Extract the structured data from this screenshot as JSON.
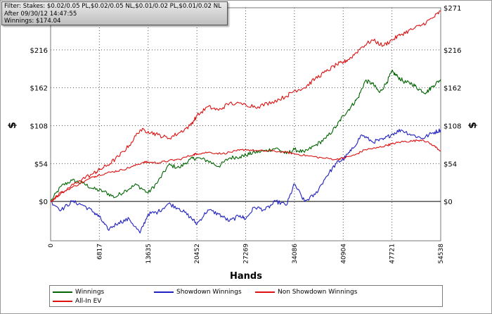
{
  "filter_panel": {
    "lines": [
      "Filter: Stakes: $0.02/0.05 PL,$0.02/0.05 NL,$0.01/0.02 PL,$0.01/0.02 NL",
      "After 09/30/12 14:47:55",
      "Winnings: $174.04"
    ]
  },
  "chart_data": {
    "type": "line",
    "xlabel": "Hands",
    "ylabel": "$",
    "xlim": [
      0,
      54538
    ],
    "ylim": [
      -56,
      276
    ],
    "x_ticks": [
      0,
      6817,
      13635,
      20452,
      27269,
      34086,
      40904,
      47721,
      54538
    ],
    "y_ticks": [
      0,
      54,
      108,
      162,
      216
    ],
    "y_tick_labels": [
      "$0",
      "$54",
      "$108",
      "$162",
      "$216"
    ],
    "y_top_label": "$271",
    "grid": true,
    "grid_style": "dotted",
    "legend_position": "bottom",
    "series": [
      {
        "name": "Winnings",
        "color": "#006400",
        "x": [
          0,
          1500,
          3000,
          4500,
          6000,
          7500,
          9000,
          10500,
          12000,
          13635,
          15000,
          16500,
          18000,
          19500,
          20452,
          22000,
          23500,
          25000,
          26500,
          27269,
          28500,
          30000,
          31500,
          33000,
          34086,
          35500,
          37000,
          38500,
          40000,
          40904,
          42000,
          43000,
          44000,
          45000,
          46000,
          47000,
          47721,
          48500,
          49500,
          50500,
          51500,
          52500,
          53500,
          54538
        ],
        "y": [
          0,
          22,
          30,
          26,
          18,
          14,
          6,
          16,
          24,
          12,
          28,
          52,
          48,
          60,
          62,
          58,
          50,
          62,
          64,
          66,
          70,
          72,
          76,
          68,
          74,
          70,
          80,
          90,
          108,
          122,
          135,
          148,
          172,
          168,
          155,
          170,
          185,
          178,
          170,
          168,
          160,
          155,
          165,
          174
        ]
      },
      {
        "name": "Showdown Winnings",
        "color": "#2020c0",
        "x": [
          0,
          1500,
          3000,
          4500,
          6000,
          6817,
          8000,
          9500,
          11000,
          12500,
          13635,
          15000,
          16500,
          18000,
          19500,
          20452,
          22000,
          23500,
          25000,
          26500,
          27269,
          28500,
          30000,
          31500,
          33000,
          34086,
          35500,
          37000,
          38500,
          40000,
          40904,
          42000,
          43500,
          45000,
          46500,
          47721,
          49000,
          50500,
          52000,
          53500,
          54538
        ],
        "y": [
          0,
          -12,
          0,
          -5,
          -15,
          -22,
          -40,
          -30,
          -25,
          -45,
          -18,
          -15,
          -3,
          -10,
          -22,
          -32,
          -12,
          -18,
          -28,
          -20,
          -25,
          -8,
          -12,
          0,
          -5,
          25,
          0,
          10,
          35,
          55,
          60,
          72,
          95,
          85,
          88,
          96,
          102,
          95,
          90,
          98,
          102
        ]
      },
      {
        "name": "Non Showdown Winnings",
        "color": "#dd1111",
        "x": [
          0,
          2000,
          4000,
          6000,
          6817,
          8500,
          10000,
          11500,
          13000,
          13635,
          15000,
          16500,
          18000,
          20000,
          20452,
          22000,
          24000,
          26000,
          27269,
          29000,
          31000,
          33000,
          34086,
          36000,
          38000,
          40000,
          40904,
          42500,
          44000,
          45500,
          47000,
          47721,
          49000,
          50500,
          52000,
          53500,
          54538
        ],
        "y": [
          0,
          15,
          25,
          35,
          38,
          42,
          45,
          50,
          56,
          56,
          55,
          58,
          60,
          67,
          68,
          70,
          68,
          72,
          74,
          72,
          72,
          70,
          68,
          65,
          62,
          60,
          62,
          66,
          74,
          76,
          80,
          82,
          85,
          86,
          88,
          80,
          72
        ]
      },
      {
        "name": "All-In EV",
        "color": "#dd1111",
        "x": [
          0,
          2000,
          4000,
          6000,
          6817,
          8000,
          9500,
          11000,
          12500,
          13635,
          15000,
          16500,
          18000,
          19500,
          20452,
          22000,
          23500,
          25000,
          27269,
          29000,
          31000,
          33000,
          34086,
          35500,
          37000,
          38500,
          40000,
          40904,
          42000,
          43500,
          45000,
          46500,
          47721,
          49000,
          50500,
          52000,
          53500,
          54538
        ],
        "y": [
          0,
          15,
          30,
          40,
          45,
          52,
          64,
          80,
          102,
          100,
          95,
          90,
          98,
          108,
          122,
          135,
          130,
          140,
          138,
          135,
          142,
          150,
          158,
          162,
          175,
          185,
          195,
          198,
          205,
          220,
          230,
          222,
          230,
          238,
          245,
          252,
          262,
          271
        ]
      }
    ]
  },
  "legend": {
    "items": [
      "Winnings",
      "Showdown Winnings",
      "Non Showdown Winnings",
      "All-In EV"
    ]
  }
}
